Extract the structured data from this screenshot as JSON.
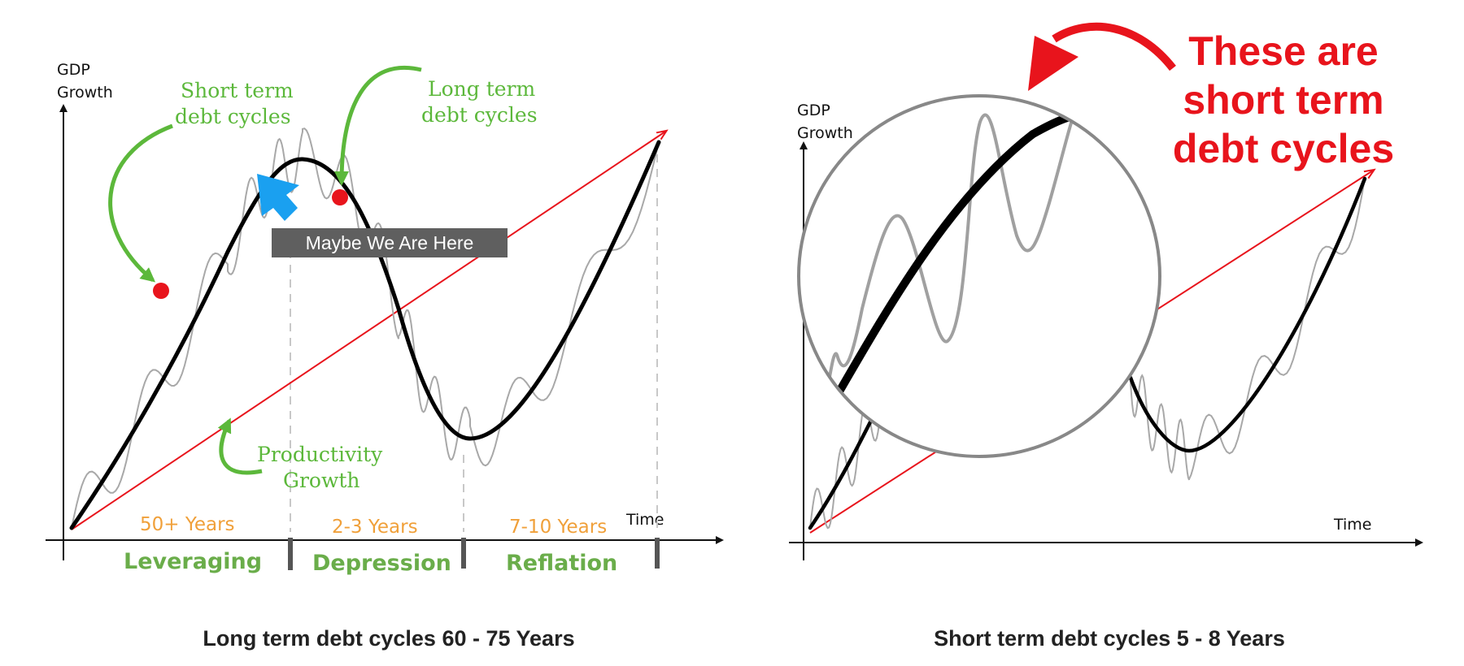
{
  "left_panel": {
    "y_axis_label": [
      "GDP",
      "Growth"
    ],
    "x_axis_label": "Time",
    "annotations": {
      "short_term": [
        "Short term",
        "debt cycles"
      ],
      "long_term": [
        "Long term",
        "debt cycles"
      ],
      "productivity": [
        "Productivity",
        "Growth"
      ],
      "banner": "Maybe We Are Here"
    },
    "phases": [
      {
        "duration": "50+ Years",
        "name": "Leveraging"
      },
      {
        "duration": "2-3 Years",
        "name": "Depression"
      },
      {
        "duration": "7-10 Years",
        "name": "Reflation"
      }
    ],
    "caption": "Long term debt cycles 60 - 75 Years"
  },
  "right_panel": {
    "y_axis_label": [
      "GDP",
      "Growth"
    ],
    "x_axis_label": "Time",
    "callout": [
      "These are",
      "short term",
      "debt cycles"
    ],
    "caption": "Short term debt cycles 5 - 8 Years"
  },
  "colors": {
    "long_cycle": "#000000",
    "short_cycle": "#a8a8a8",
    "productivity": "#e8141c",
    "annotation_green": "#5cb83b",
    "duration_orange": "#f0a03a",
    "marker_red": "#e8141c",
    "cursor_blue": "#1aa0f0",
    "banner_bg": "#5f5f5f",
    "callout_red": "#e8141c"
  },
  "icons": {
    "cursor": "arrow-cursor-icon",
    "markers": "red-dot-icon"
  }
}
